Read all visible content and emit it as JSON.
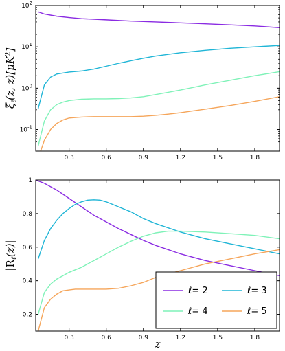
{
  "chart_data": [
    {
      "type": "line",
      "title": "",
      "xlabel": "",
      "ylabel": "ξℓ(z,z)[μK²]",
      "yscale": "log",
      "xlim": [
        0.03,
        2.0
      ],
      "ylim": [
        0.03,
        100
      ],
      "xticks": [
        "0.3",
        "0.6",
        "0.9",
        "1.2",
        "1.5",
        "1.8"
      ],
      "xtick_values": [
        0.3,
        0.6,
        0.9,
        1.2,
        1.5,
        1.8
      ],
      "yticks": [
        {
          "value": 0.1,
          "base": "10",
          "exp": "-1"
        },
        {
          "value": 1,
          "base": "10",
          "exp": "0"
        },
        {
          "value": 10,
          "base": "10",
          "exp": "1"
        },
        {
          "value": 100,
          "base": "10",
          "exp": "2"
        }
      ],
      "grid": false,
      "series": [
        {
          "color": "#8a2be2",
          "x": [
            0.05,
            0.1,
            0.2,
            0.3,
            0.4,
            0.6,
            0.8,
            1.0,
            1.2,
            1.4,
            1.6,
            1.8,
            2.0
          ],
          "y": [
            70,
            62,
            55,
            51,
            48,
            45,
            42,
            40,
            38,
            36,
            34,
            32,
            29
          ]
        },
        {
          "color": "#1fb5d6",
          "x": [
            0.05,
            0.1,
            0.15,
            0.2,
            0.3,
            0.4,
            0.5,
            0.6,
            0.7,
            0.8,
            0.9,
            1.0,
            1.2,
            1.4,
            1.6,
            1.8,
            2.0
          ],
          "y": [
            0.32,
            1.2,
            1.85,
            2.2,
            2.45,
            2.6,
            2.9,
            3.4,
            4.0,
            4.6,
            5.3,
            6.0,
            7.2,
            8.2,
            9.2,
            10,
            10.8
          ]
        },
        {
          "color": "#7ff2b8",
          "x": [
            0.05,
            0.1,
            0.15,
            0.2,
            0.25,
            0.3,
            0.4,
            0.5,
            0.6,
            0.7,
            0.8,
            0.9,
            1.0,
            1.2,
            1.4,
            1.6,
            1.8,
            2.0
          ],
          "y": [
            0.04,
            0.16,
            0.3,
            0.4,
            0.46,
            0.5,
            0.54,
            0.55,
            0.55,
            0.56,
            0.58,
            0.62,
            0.7,
            0.9,
            1.2,
            1.55,
            2.0,
            2.5
          ]
        },
        {
          "color": "#f5a55a",
          "x": [
            0.05,
            0.1,
            0.15,
            0.2,
            0.25,
            0.3,
            0.4,
            0.5,
            0.6,
            0.7,
            0.8,
            0.9,
            1.0,
            1.1,
            1.2,
            1.4,
            1.6,
            1.8,
            2.0
          ],
          "y": [
            0.02,
            0.055,
            0.1,
            0.14,
            0.17,
            0.19,
            0.2,
            0.205,
            0.205,
            0.205,
            0.205,
            0.21,
            0.22,
            0.235,
            0.255,
            0.31,
            0.38,
            0.48,
            0.62
          ]
        }
      ]
    },
    {
      "type": "line",
      "title": "",
      "xlabel": "z",
      "ylabel": "|Rℓ(z)|",
      "xlim": [
        0.03,
        2.0
      ],
      "ylim": [
        0.1,
        1.0
      ],
      "xticks": [
        "0.3",
        "0.6",
        "0.9",
        "1.2",
        "1.5",
        "1.8"
      ],
      "xtick_values": [
        0.3,
        0.6,
        0.9,
        1.2,
        1.5,
        1.8
      ],
      "yticks": [
        "0.2",
        "0.4",
        "0.6",
        "0.8",
        "1"
      ],
      "ytick_values": [
        0.2,
        0.4,
        0.6,
        0.8,
        1.0
      ],
      "grid": false,
      "legend": {
        "placement": "bottom-right",
        "ncol": 2
      },
      "series": [
        {
          "name": "ℓ= 2",
          "color": "#8a2be2",
          "x": [
            0.03,
            0.1,
            0.2,
            0.3,
            0.4,
            0.5,
            0.6,
            0.7,
            0.8,
            0.9,
            1.0,
            1.2,
            1.4,
            1.6,
            1.8,
            2.0
          ],
          "y": [
            1.0,
            0.98,
            0.94,
            0.89,
            0.84,
            0.79,
            0.75,
            0.71,
            0.675,
            0.64,
            0.61,
            0.56,
            0.52,
            0.49,
            0.46,
            0.43
          ]
        },
        {
          "name": "ℓ= 3",
          "color": "#1fb5d6",
          "x": [
            0.05,
            0.1,
            0.15,
            0.2,
            0.25,
            0.3,
            0.35,
            0.4,
            0.45,
            0.5,
            0.55,
            0.6,
            0.7,
            0.8,
            0.9,
            1.0,
            1.2,
            1.4,
            1.6,
            1.8,
            2.0
          ],
          "y": [
            0.53,
            0.64,
            0.71,
            0.76,
            0.8,
            0.83,
            0.855,
            0.87,
            0.88,
            0.882,
            0.88,
            0.87,
            0.84,
            0.81,
            0.77,
            0.74,
            0.69,
            0.65,
            0.62,
            0.59,
            0.56
          ]
        },
        {
          "name": "ℓ= 4",
          "color": "#7ff2b8",
          "x": [
            0.05,
            0.1,
            0.15,
            0.2,
            0.25,
            0.3,
            0.4,
            0.5,
            0.6,
            0.7,
            0.8,
            0.9,
            1.0,
            1.1,
            1.2,
            1.4,
            1.6,
            1.8,
            2.0
          ],
          "y": [
            0.2,
            0.33,
            0.38,
            0.41,
            0.43,
            0.45,
            0.48,
            0.52,
            0.56,
            0.6,
            0.635,
            0.665,
            0.685,
            0.695,
            0.695,
            0.69,
            0.68,
            0.67,
            0.65
          ]
        },
        {
          "name": "ℓ= 5",
          "color": "#f5a55a",
          "x": [
            0.05,
            0.1,
            0.15,
            0.2,
            0.25,
            0.3,
            0.35,
            0.4,
            0.5,
            0.6,
            0.7,
            0.8,
            0.9,
            1.0,
            1.2,
            1.4,
            1.6,
            1.8,
            2.0
          ],
          "y": [
            0.1,
            0.24,
            0.29,
            0.32,
            0.34,
            0.345,
            0.35,
            0.35,
            0.35,
            0.35,
            0.355,
            0.37,
            0.39,
            0.42,
            0.46,
            0.5,
            0.53,
            0.56,
            0.585
          ]
        }
      ]
    }
  ]
}
